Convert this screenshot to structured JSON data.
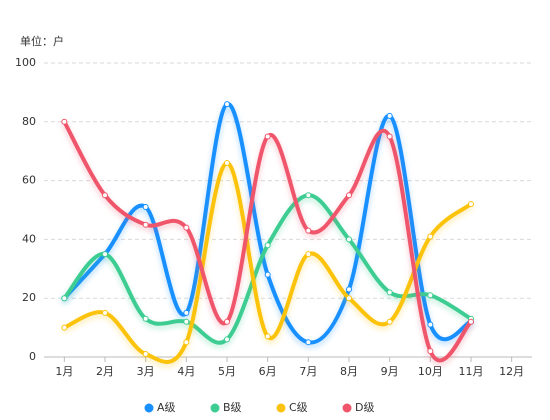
{
  "chart_data": {
    "type": "line",
    "y_label": "单位：户",
    "categories": [
      "1月",
      "2月",
      "3月",
      "4月",
      "5月",
      "6月",
      "7月",
      "8月",
      "9月",
      "10月",
      "11月",
      "12月"
    ],
    "series": [
      {
        "name": "A级",
        "color": "#1890ff",
        "values": [
          20,
          35,
          51,
          15,
          86,
          28,
          5,
          23,
          82,
          11,
          12,
          null
        ]
      },
      {
        "name": "B级",
        "color": "#3dcc91",
        "values": [
          20,
          35,
          13,
          12,
          6,
          38,
          55,
          40,
          22,
          21,
          13,
          null
        ]
      },
      {
        "name": "C级",
        "color": "#fcc30c",
        "values": [
          10,
          15,
          1,
          5,
          66,
          7,
          35,
          20,
          12,
          41,
          52,
          null
        ]
      },
      {
        "name": "D级",
        "color": "#f0566b",
        "values": [
          80,
          55,
          45,
          44,
          12,
          75,
          43,
          55,
          75,
          2,
          12,
          null
        ]
      }
    ],
    "ylim": [
      0,
      100
    ],
    "yticks": [
      0,
      20,
      40,
      60,
      80,
      100
    ],
    "grid": true,
    "legend": "bottom"
  }
}
